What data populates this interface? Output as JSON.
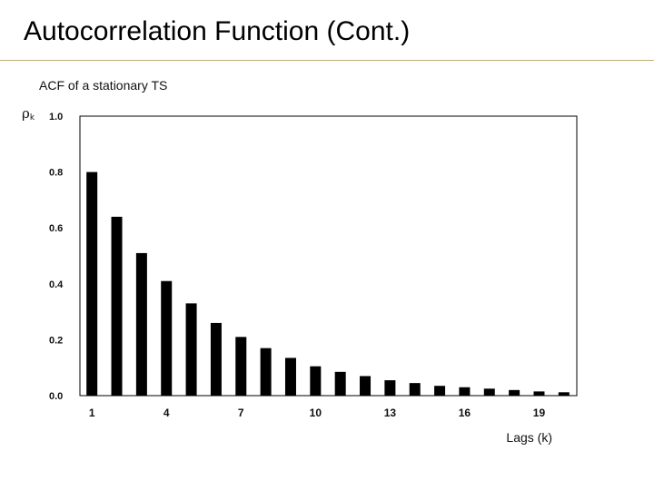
{
  "slide": {
    "title": "Autocorrelation Function (Cont.)"
  },
  "chart_data": {
    "type": "bar",
    "title": "ACF of a stationary  TS",
    "ylabel_main": "ρ",
    "ylabel_sub": "k",
    "xlabel": "Lags (k)",
    "ylim": [
      0,
      1.0
    ],
    "yticks": [
      "0.0",
      "0.2",
      "0.4",
      "0.6",
      "0.8",
      "1.0"
    ],
    "xtick_labels": [
      {
        "lag": 1,
        "label": "1"
      },
      {
        "lag": 4,
        "label": "4"
      },
      {
        "lag": 7,
        "label": "7"
      },
      {
        "lag": 10,
        "label": "10"
      },
      {
        "lag": 13,
        "label": "13"
      },
      {
        "lag": 16,
        "label": "16"
      },
      {
        "lag": 19,
        "label": "19"
      }
    ],
    "categories": [
      1,
      2,
      3,
      4,
      5,
      6,
      7,
      8,
      9,
      10,
      11,
      12,
      13,
      14,
      15,
      16,
      17,
      18,
      19,
      20
    ],
    "values": [
      0.8,
      0.64,
      0.51,
      0.41,
      0.33,
      0.26,
      0.21,
      0.17,
      0.135,
      0.105,
      0.085,
      0.07,
      0.055,
      0.045,
      0.035,
      0.03,
      0.025,
      0.02,
      0.015,
      0.012
    ],
    "grid": false,
    "bar_color": "#000000"
  }
}
